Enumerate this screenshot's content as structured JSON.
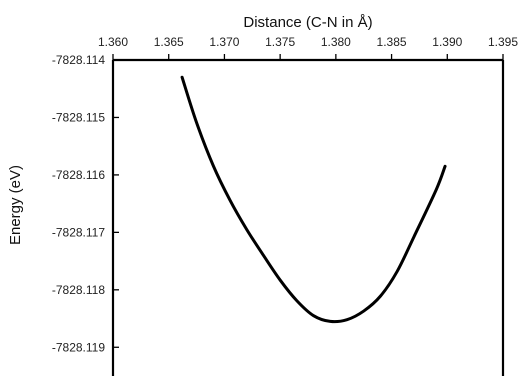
{
  "chart_data": {
    "type": "line",
    "title": "",
    "xlabel": "Distance (C-N in Å)",
    "ylabel": "Energy (eV)",
    "xlim": [
      1.36,
      1.395
    ],
    "ylim": [
      -7828.1195,
      -7828.114
    ],
    "x_ticks": [
      "1.360",
      "1.365",
      "1.370",
      "1.375",
      "1.380",
      "1.385",
      "1.390",
      "1.395"
    ],
    "y_ticks": [
      "-7828.114",
      "-7828.115",
      "-7828.116",
      "-7828.117",
      "-7828.118",
      "-7828.119"
    ],
    "x_axis_position": "top",
    "grid": false,
    "legend": "none",
    "colors": {
      "line": "#000000",
      "axis": "#000000",
      "text": "#222222"
    },
    "series": [
      {
        "x": [
          1.3662,
          1.3675,
          1.369,
          1.3705,
          1.372,
          1.3735,
          1.375,
          1.3765,
          1.378,
          1.3795,
          1.381,
          1.3825,
          1.384,
          1.3855,
          1.387,
          1.389,
          1.3898
        ],
        "y": [
          -7828.1143,
          -7828.11509,
          -7828.11584,
          -7828.11644,
          -7828.11695,
          -7828.1174,
          -7828.11783,
          -7828.11819,
          -7828.11845,
          -7828.11855,
          -7828.11852,
          -7828.11837,
          -7828.11811,
          -7828.11768,
          -7828.11708,
          -7828.11626,
          -7828.11585
        ]
      }
    ]
  }
}
